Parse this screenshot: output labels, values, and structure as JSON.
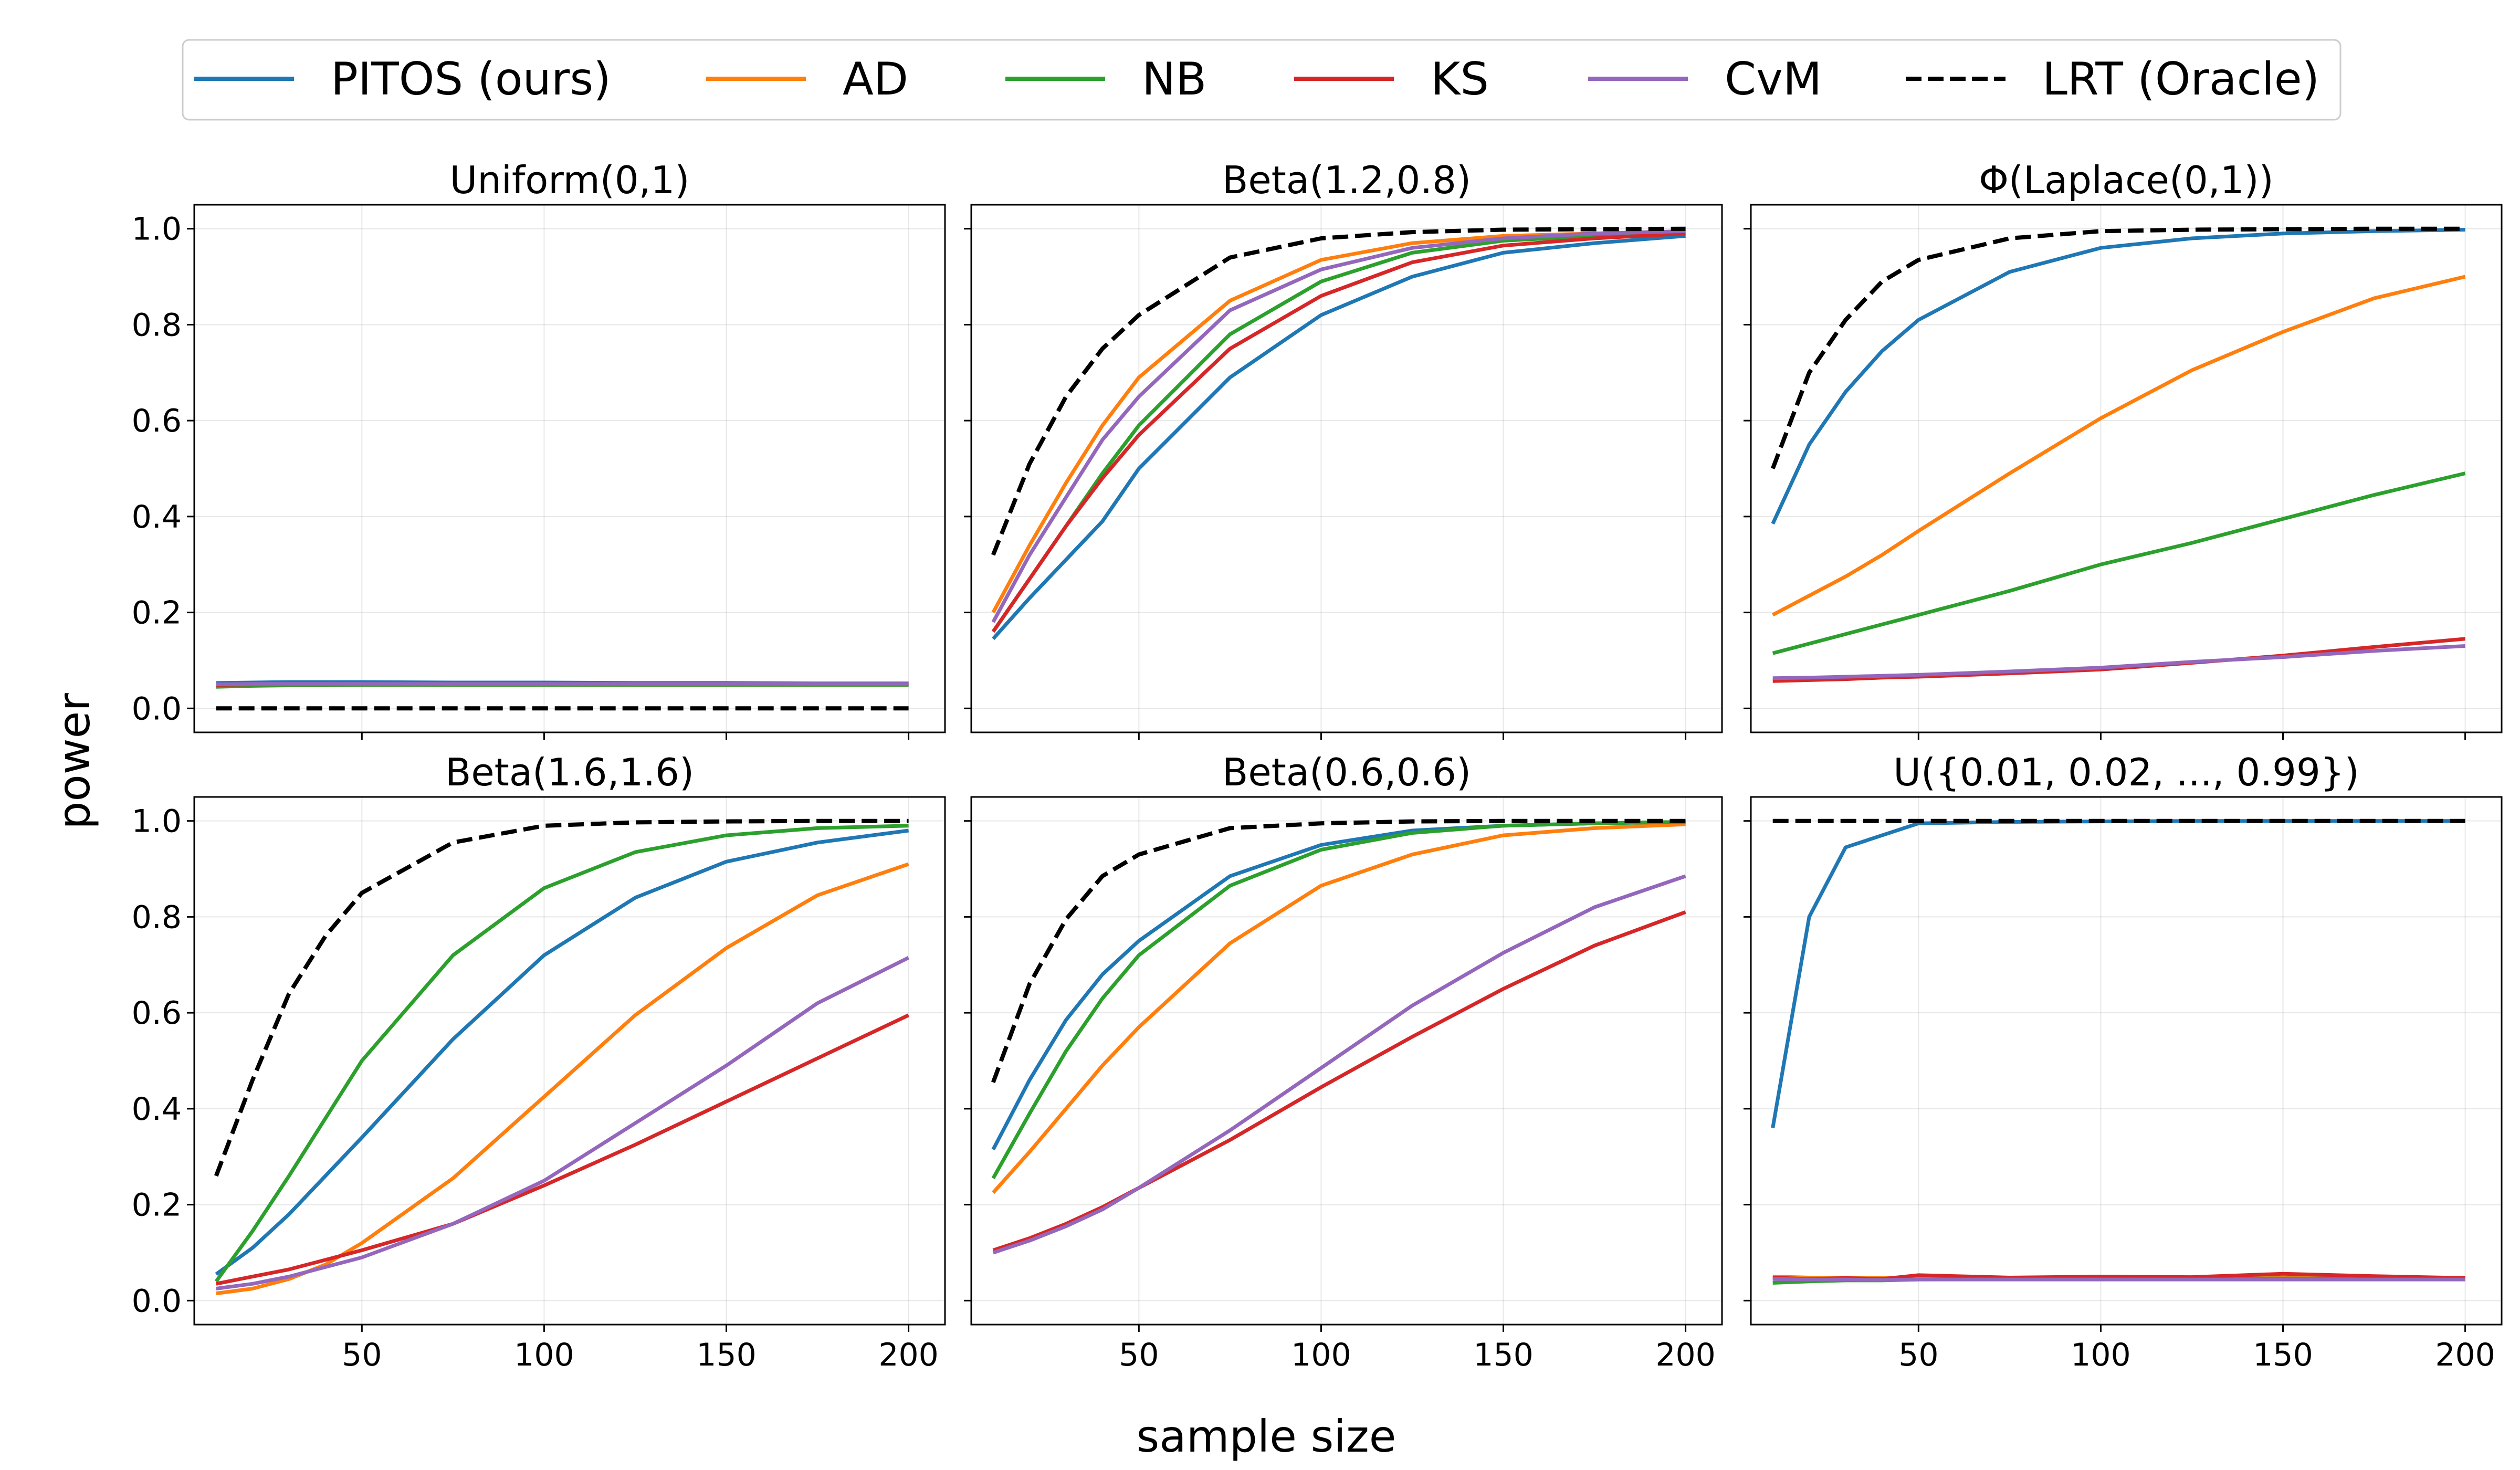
{
  "chart_data": {
    "type": "line",
    "xlabel": "sample size",
    "ylabel": "power",
    "xlim": [
      4,
      210
    ],
    "ylim": [
      -0.05,
      1.05
    ],
    "x_ticks": [
      50,
      100,
      150,
      200
    ],
    "y_ticks": [
      0.0,
      0.2,
      0.4,
      0.6,
      0.8,
      1.0
    ],
    "y_tick_labels": [
      "0.0",
      "0.2",
      "0.4",
      "0.6",
      "0.8",
      "1.0"
    ],
    "grid": true,
    "legend_position": "top",
    "legend": [
      {
        "key": "pitos",
        "label": "PITOS (ours)",
        "color": "#1f77b4",
        "dash": false
      },
      {
        "key": "ad",
        "label": "AD",
        "color": "#ff7f0e",
        "dash": false
      },
      {
        "key": "nb",
        "label": "NB",
        "color": "#2ca02c",
        "dash": false
      },
      {
        "key": "ks",
        "label": "KS",
        "color": "#d62728",
        "dash": false
      },
      {
        "key": "cvm",
        "label": "CvM",
        "color": "#9467bd",
        "dash": false
      },
      {
        "key": "lrt",
        "label": "LRT (Oracle)",
        "color": "#000000",
        "dash": true
      }
    ],
    "x": [
      10,
      20,
      30,
      40,
      50,
      75,
      100,
      125,
      150,
      175,
      200
    ],
    "panels": [
      {
        "title": "Uniform(0,1)",
        "series": [
          {
            "name": "PITOS (ours)",
            "key": "pitos",
            "values": [
              0.053,
              0.054,
              0.055,
              0.055,
              0.055,
              0.054,
              0.054,
              0.053,
              0.053,
              0.052,
              0.052
            ]
          },
          {
            "name": "AD",
            "key": "ad",
            "values": [
              0.048,
              0.049,
              0.05,
              0.05,
              0.05,
              0.05,
              0.05,
              0.05,
              0.05,
              0.05,
              0.05
            ]
          },
          {
            "name": "NB",
            "key": "nb",
            "values": [
              0.045,
              0.047,
              0.048,
              0.048,
              0.049,
              0.049,
              0.049,
              0.049,
              0.049,
              0.049,
              0.049
            ]
          },
          {
            "name": "KS",
            "key": "ks",
            "values": [
              0.049,
              0.05,
              0.05,
              0.05,
              0.05,
              0.05,
              0.05,
              0.05,
              0.05,
              0.05,
              0.05
            ]
          },
          {
            "name": "CvM",
            "key": "cvm",
            "values": [
              0.05,
              0.051,
              0.051,
              0.051,
              0.051,
              0.051,
              0.051,
              0.051,
              0.051,
              0.051,
              0.051
            ]
          },
          {
            "name": "LRT (Oracle)",
            "key": "lrt",
            "values": [
              0.0,
              0.0,
              0.0,
              0.0,
              0.0,
              0.0,
              0.0,
              0.0,
              0.0,
              0.0,
              0.0
            ]
          }
        ]
      },
      {
        "title": "Beta(1.2,0.8)",
        "series": [
          {
            "name": "PITOS (ours)",
            "key": "pitos",
            "values": [
              0.145,
              0.23,
              0.31,
              0.39,
              0.5,
              0.69,
              0.82,
              0.9,
              0.95,
              0.97,
              0.985
            ]
          },
          {
            "name": "AD",
            "key": "ad",
            "values": [
              0.2,
              0.34,
              0.47,
              0.59,
              0.69,
              0.85,
              0.935,
              0.97,
              0.985,
              0.99,
              0.995
            ]
          },
          {
            "name": "NB",
            "key": "nb",
            "values": [
              0.16,
              0.27,
              0.38,
              0.49,
              0.59,
              0.78,
              0.89,
              0.95,
              0.975,
              0.985,
              0.99
            ]
          },
          {
            "name": "KS",
            "key": "ks",
            "values": [
              0.16,
              0.27,
              0.38,
              0.48,
              0.57,
              0.75,
              0.86,
              0.93,
              0.965,
              0.98,
              0.99
            ]
          },
          {
            "name": "CvM",
            "key": "cvm",
            "values": [
              0.18,
              0.32,
              0.44,
              0.56,
              0.65,
              0.83,
              0.915,
              0.96,
              0.98,
              0.99,
              0.995
            ]
          },
          {
            "name": "LRT (Oracle)",
            "key": "lrt",
            "values": [
              0.32,
              0.51,
              0.65,
              0.75,
              0.82,
              0.94,
              0.98,
              0.993,
              0.998,
              0.999,
              1.0
            ]
          }
        ]
      },
      {
        "title": "Φ(Laplace(0,1))",
        "series": [
          {
            "name": "PITOS (ours)",
            "key": "pitos",
            "values": [
              0.385,
              0.55,
              0.66,
              0.745,
              0.81,
              0.91,
              0.96,
              0.98,
              0.99,
              0.995,
              0.998
            ]
          },
          {
            "name": "AD",
            "key": "ad",
            "values": [
              0.195,
              0.235,
              0.275,
              0.32,
              0.37,
              0.49,
              0.605,
              0.705,
              0.785,
              0.855,
              0.9
            ]
          },
          {
            "name": "NB",
            "key": "nb",
            "values": [
              0.115,
              0.135,
              0.155,
              0.175,
              0.195,
              0.245,
              0.3,
              0.345,
              0.395,
              0.445,
              0.49
            ]
          },
          {
            "name": "KS",
            "key": "ks",
            "values": [
              0.057,
              0.059,
              0.061,
              0.064,
              0.066,
              0.073,
              0.081,
              0.095,
              0.11,
              0.128,
              0.145
            ]
          },
          {
            "name": "CvM",
            "key": "cvm",
            "values": [
              0.063,
              0.064,
              0.066,
              0.068,
              0.07,
              0.077,
              0.085,
              0.097,
              0.107,
              0.12,
              0.13
            ]
          },
          {
            "name": "LRT (Oracle)",
            "key": "lrt",
            "values": [
              0.5,
              0.7,
              0.81,
              0.89,
              0.935,
              0.98,
              0.995,
              0.998,
              0.999,
              1.0,
              1.0
            ]
          }
        ]
      },
      {
        "title": "Beta(1.6,1.6)",
        "series": [
          {
            "name": "PITOS (ours)",
            "key": "pitos",
            "values": [
              0.055,
              0.11,
              0.18,
              0.26,
              0.34,
              0.545,
              0.72,
              0.84,
              0.915,
              0.955,
              0.98
            ]
          },
          {
            "name": "AD",
            "key": "ad",
            "values": [
              0.015,
              0.025,
              0.045,
              0.075,
              0.12,
              0.255,
              0.425,
              0.595,
              0.735,
              0.845,
              0.91
            ]
          },
          {
            "name": "NB",
            "key": "nb",
            "values": [
              0.04,
              0.145,
              0.26,
              0.38,
              0.5,
              0.72,
              0.86,
              0.935,
              0.97,
              0.985,
              0.99
            ]
          },
          {
            "name": "KS",
            "key": "ks",
            "values": [
              0.035,
              0.05,
              0.065,
              0.085,
              0.105,
              0.16,
              0.24,
              0.325,
              0.415,
              0.505,
              0.595
            ]
          },
          {
            "name": "CvM",
            "key": "cvm",
            "values": [
              0.025,
              0.035,
              0.05,
              0.07,
              0.09,
              0.16,
              0.25,
              0.37,
              0.49,
              0.62,
              0.715
            ]
          },
          {
            "name": "LRT (Oracle)",
            "key": "lrt",
            "values": [
              0.26,
              0.46,
              0.64,
              0.76,
              0.85,
              0.955,
              0.99,
              0.997,
              0.999,
              1.0,
              1.0
            ]
          }
        ]
      },
      {
        "title": "Beta(0.6,0.6)",
        "series": [
          {
            "name": "PITOS (ours)",
            "key": "pitos",
            "values": [
              0.315,
              0.46,
              0.585,
              0.68,
              0.75,
              0.885,
              0.95,
              0.98,
              0.99,
              0.995,
              0.998
            ]
          },
          {
            "name": "AD",
            "key": "ad",
            "values": [
              0.225,
              0.31,
              0.4,
              0.49,
              0.57,
              0.745,
              0.865,
              0.93,
              0.97,
              0.985,
              0.993
            ]
          },
          {
            "name": "NB",
            "key": "nb",
            "values": [
              0.255,
              0.39,
              0.52,
              0.63,
              0.72,
              0.865,
              0.94,
              0.975,
              0.99,
              0.995,
              0.998
            ]
          },
          {
            "name": "KS",
            "key": "ks",
            "values": [
              0.105,
              0.13,
              0.16,
              0.195,
              0.235,
              0.335,
              0.445,
              0.55,
              0.65,
              0.74,
              0.81
            ]
          },
          {
            "name": "CvM",
            "key": "cvm",
            "values": [
              0.1,
              0.125,
              0.155,
              0.19,
              0.235,
              0.355,
              0.485,
              0.615,
              0.725,
              0.82,
              0.885
            ]
          },
          {
            "name": "LRT (Oracle)",
            "key": "lrt",
            "values": [
              0.455,
              0.66,
              0.795,
              0.885,
              0.93,
              0.985,
              0.995,
              0.999,
              1.0,
              1.0,
              1.0
            ]
          }
        ]
      },
      {
        "title": "U({0.01, 0.02, ..., 0.99})",
        "series": [
          {
            "name": "PITOS (ours)",
            "key": "pitos",
            "values": [
              0.36,
              0.8,
              0.945,
              0.97,
              0.995,
              0.998,
              0.999,
              1.0,
              1.0,
              1.0,
              1.0
            ]
          },
          {
            "name": "AD",
            "key": "ad",
            "values": [
              0.05,
              0.048,
              0.048,
              0.047,
              0.048,
              0.048,
              0.048,
              0.048,
              0.048,
              0.048,
              0.048
            ]
          },
          {
            "name": "NB",
            "key": "nb",
            "values": [
              0.037,
              0.04,
              0.042,
              0.042,
              0.044,
              0.045,
              0.045,
              0.046,
              0.046,
              0.046,
              0.046
            ]
          },
          {
            "name": "KS",
            "key": "ks",
            "values": [
              0.048,
              0.045,
              0.047,
              0.045,
              0.053,
              0.048,
              0.05,
              0.049,
              0.056,
              0.051,
              0.047
            ]
          },
          {
            "name": "CvM",
            "key": "cvm",
            "values": [
              0.045,
              0.044,
              0.044,
              0.043,
              0.044,
              0.044,
              0.044,
              0.044,
              0.044,
              0.044,
              0.044
            ]
          },
          {
            "name": "LRT (Oracle)",
            "key": "lrt",
            "values": [
              1.0,
              1.0,
              1.0,
              1.0,
              1.0,
              1.0,
              1.0,
              1.0,
              1.0,
              1.0,
              1.0
            ]
          }
        ]
      }
    ]
  }
}
